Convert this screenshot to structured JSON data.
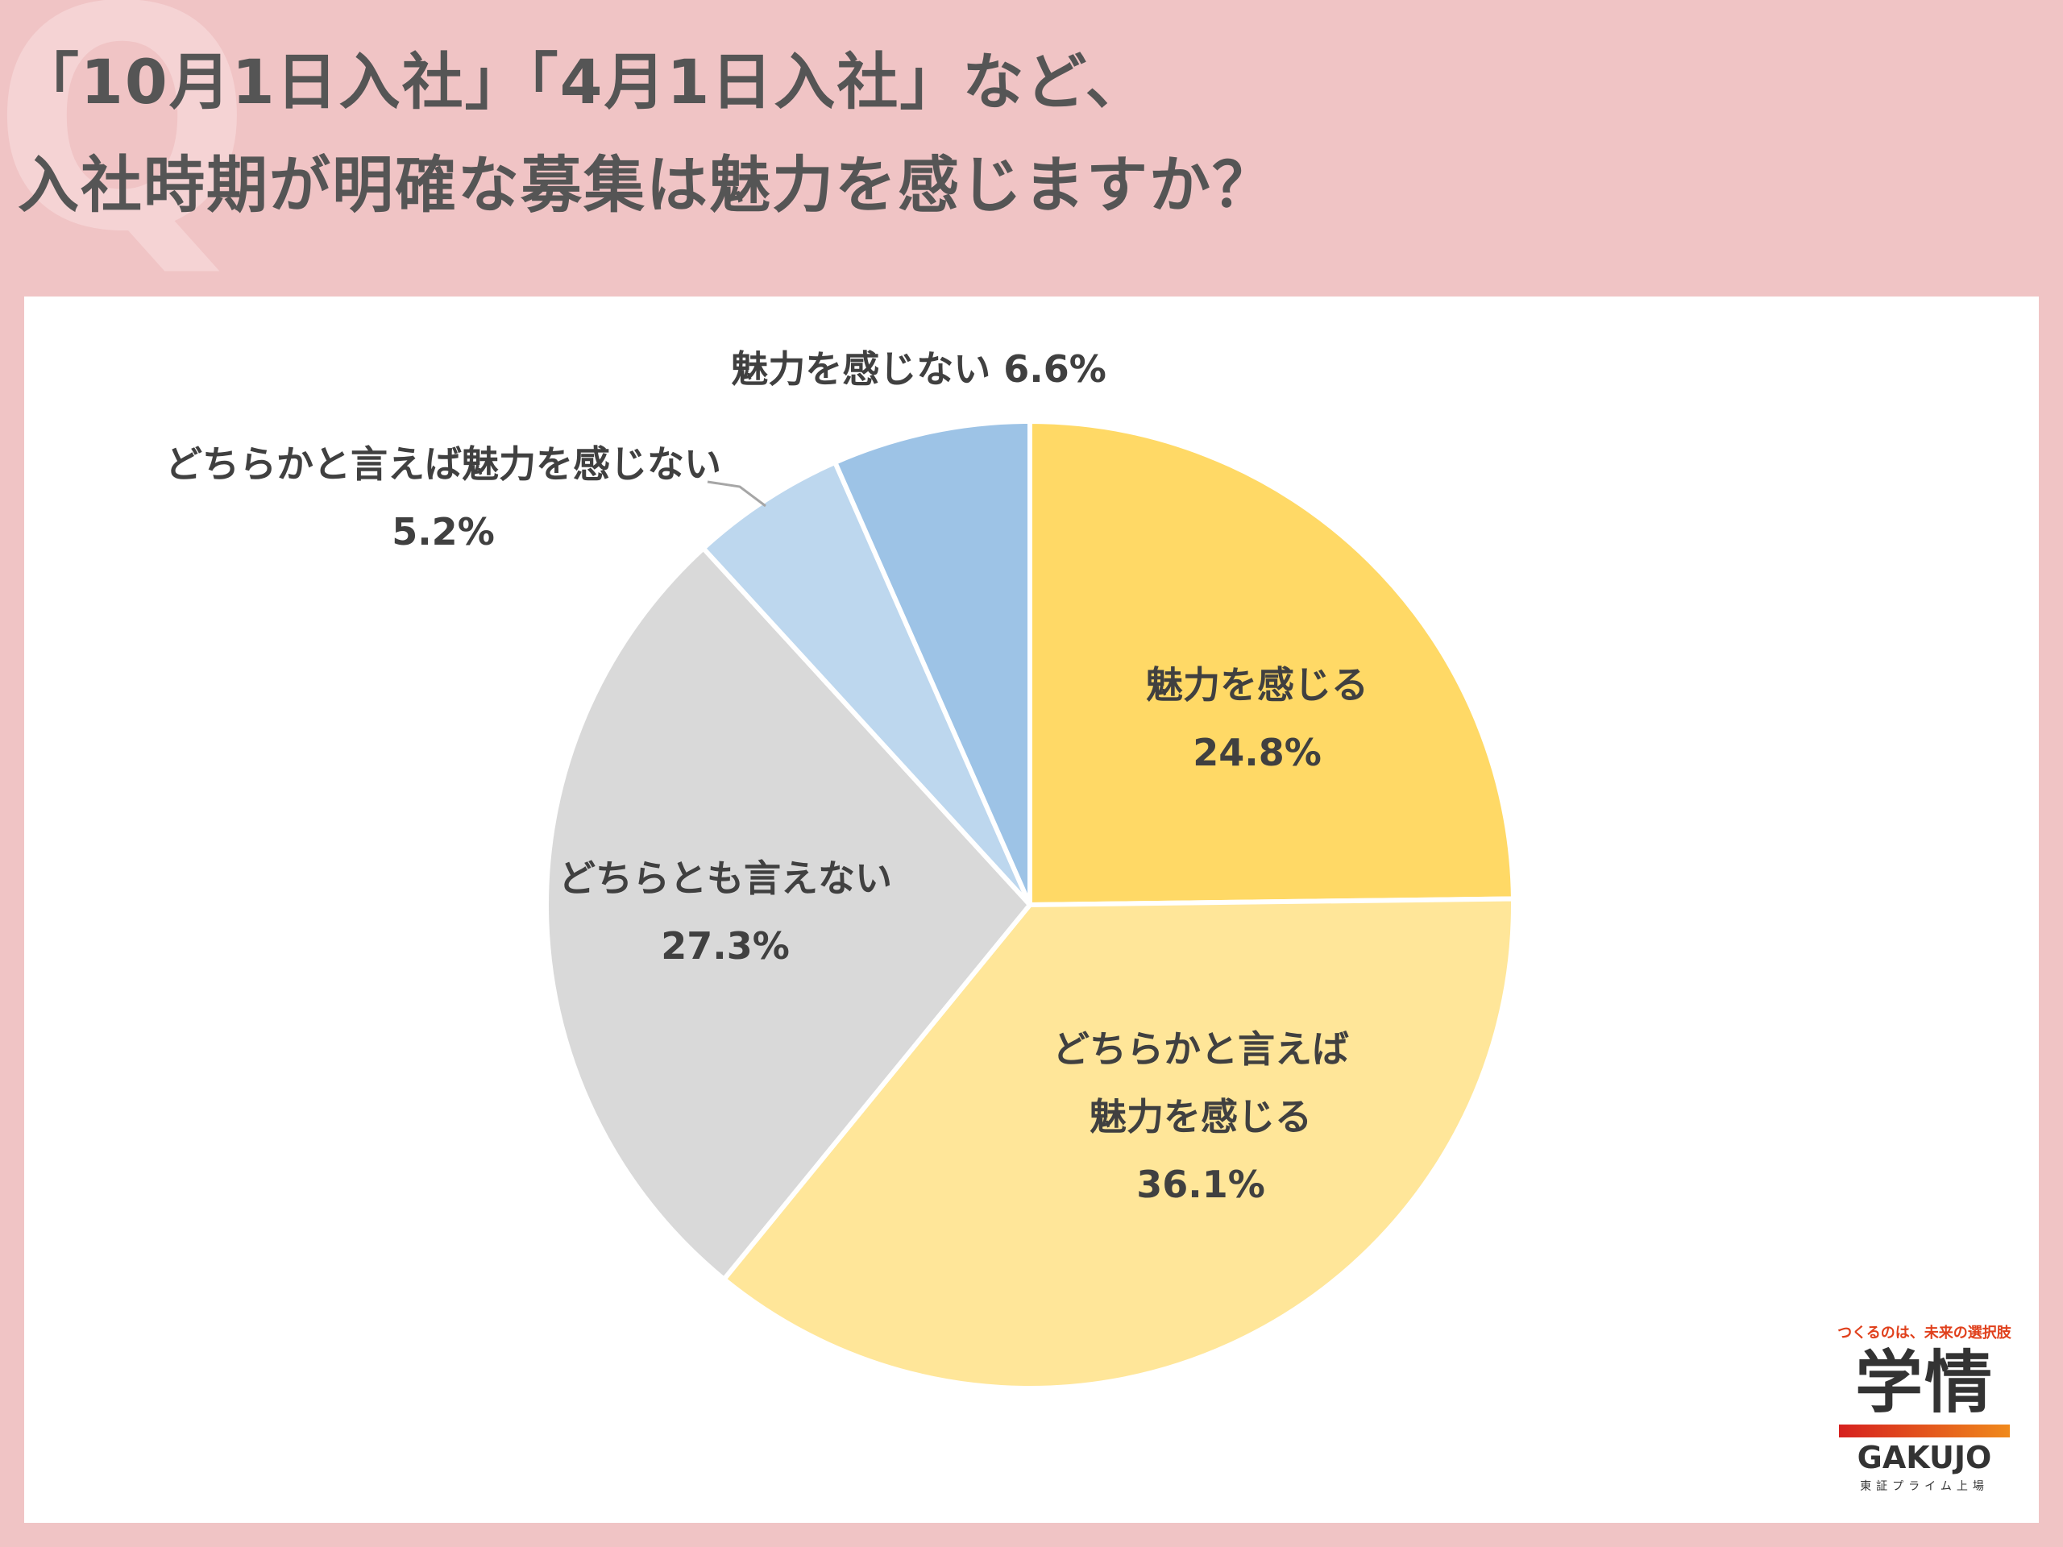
{
  "title": {
    "line1": "「10月1日入社」「4月1日入社」など、",
    "line2": "入社時期が明確な募集は魅力を感じますか？"
  },
  "chart_data": {
    "type": "pie",
    "start": "top",
    "direction": "clockwise",
    "slices": [
      {
        "label": "魅力を感じる",
        "label_lines": [
          "魅力を感じる"
        ],
        "value": 24.8,
        "value_text": "24.8%",
        "color": "#ffd966"
      },
      {
        "label": "どちらかと言えば魅力を感じる",
        "label_lines": [
          "どちらかと言えば",
          "魅力を感じる"
        ],
        "value": 36.1,
        "value_text": "36.1%",
        "color": "#ffe699"
      },
      {
        "label": "どちらとも言えない",
        "label_lines": [
          "どちらとも言えない"
        ],
        "value": 27.3,
        "value_text": "27.3%",
        "color": "#d9d9d9"
      },
      {
        "label": "どちらかと言えば魅力を感じない",
        "label_lines": [
          "どちらかと言えば魅力を感じない"
        ],
        "value": 5.2,
        "value_text": "5.2%",
        "color": "#bdd7ee"
      },
      {
        "label": "魅力を感じない",
        "label_lines": [
          "魅力を感じない 6.6%"
        ],
        "value": 6.6,
        "value_text": "",
        "color": "#9dc3e6"
      }
    ]
  },
  "logo": {
    "tagline": "つくるのは、未来の選択肢",
    "mark": "学情",
    "name": "GAKUJO",
    "sub": "東証プライム上場"
  }
}
